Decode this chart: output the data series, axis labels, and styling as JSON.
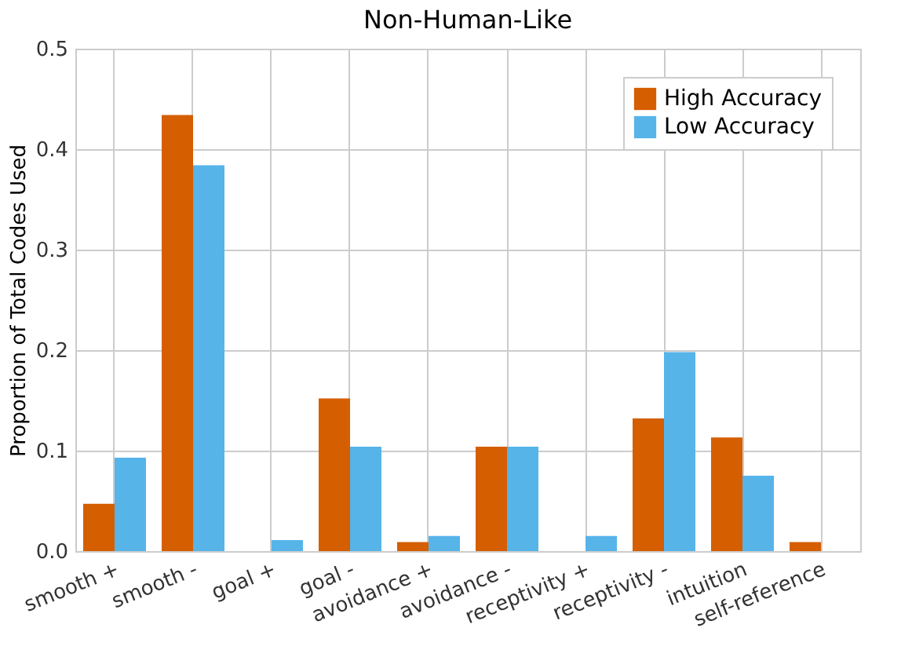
{
  "chart_data": {
    "type": "bar",
    "title": "Non-Human-Like",
    "ylabel": "Proportion of Total Codes Used",
    "categories": [
      "smooth +",
      "smooth -",
      "goal +",
      "goal -",
      "avoidance +",
      "avoidance -",
      "receptivity +",
      "receptivity -",
      "intuition",
      "self-reference"
    ],
    "series": [
      {
        "name": "High Accuracy",
        "color": "#d55e00",
        "values": [
          0.047,
          0.434,
          0,
          0.152,
          0.009,
          0.104,
          0,
          0.132,
          0.113,
          0.009
        ]
      },
      {
        "name": "Low Accuracy",
        "color": "#56b4e9",
        "values": [
          0.093,
          0.384,
          0.011,
          0.104,
          0.015,
          0.104,
          0.015,
          0.198,
          0.075,
          0
        ]
      }
    ],
    "ylim": [
      0,
      0.5
    ],
    "yticks": [
      {
        "value": 0,
        "label": "0.0"
      },
      0.1,
      0.2,
      0.3,
      0.4,
      0.5
    ],
    "grid": true,
    "legend": "top right"
  }
}
